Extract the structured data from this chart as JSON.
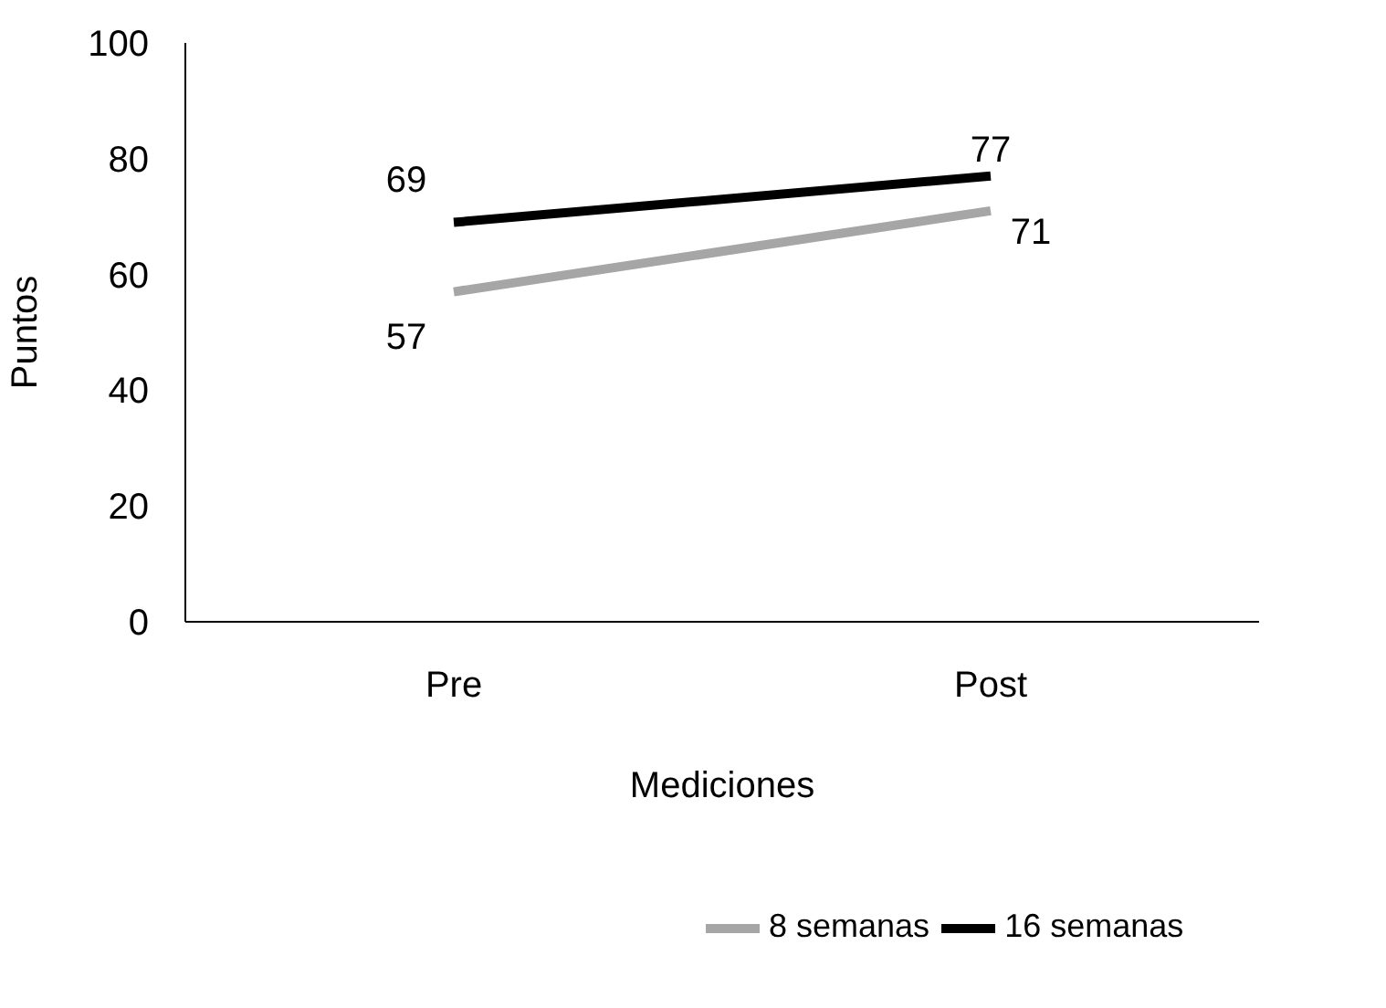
{
  "chart_data": {
    "type": "line",
    "xlabel": "Mediciones",
    "ylabel": "Puntos",
    "categories": [
      "Pre",
      "Post"
    ],
    "series": [
      {
        "name": "8 semanas",
        "color": "#a6a6a6",
        "values": [
          57,
          71
        ]
      },
      {
        "name": "16 semanas",
        "color": "#000000",
        "values": [
          69,
          77
        ]
      }
    ],
    "ylim": [
      0,
      100
    ],
    "yticks": [
      0,
      20,
      40,
      60,
      80,
      100
    ],
    "grid": false,
    "legend": "bottom",
    "data_labels": true,
    "marker": "none"
  }
}
